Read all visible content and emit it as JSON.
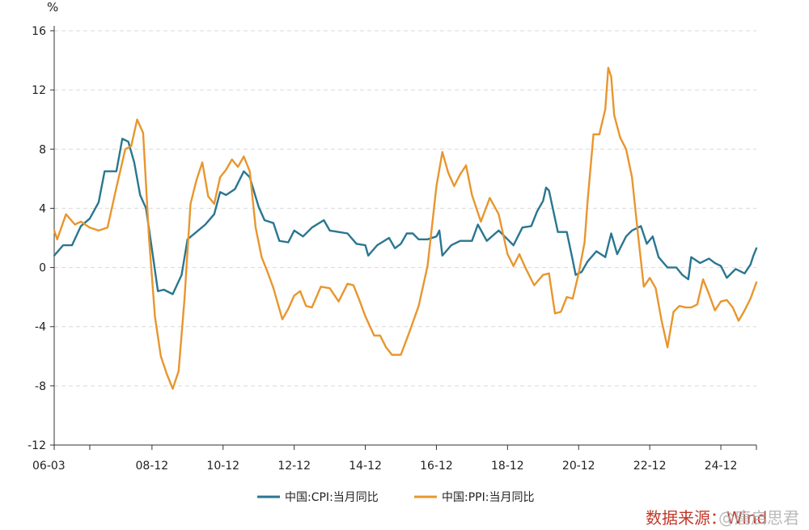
{
  "chart_data": {
    "type": "line",
    "title": "",
    "unit_label": "%",
    "ylim": [
      -12,
      16
    ],
    "yticks": [
      -12,
      -8,
      -4,
      0,
      4,
      8,
      12,
      16
    ],
    "y_tick_labels": [
      "-12",
      "-8",
      "-4",
      "0",
      "4",
      "8",
      "12",
      "16"
    ],
    "x_range": [
      "2006-03",
      "2025-12"
    ],
    "x_tick_labels": [
      "06-03",
      "08-12",
      "10-12",
      "12-12",
      "14-12",
      "16-12",
      "18-12",
      "20-12",
      "22-12",
      "24-12"
    ],
    "x_tick_dates": [
      "2006-03",
      "2008-12",
      "2010-12",
      "2012-12",
      "2014-12",
      "2016-12",
      "2018-12",
      "2020-12",
      "2022-12",
      "2024-12"
    ],
    "grid": true,
    "legend_position": "bottom",
    "series": [
      {
        "name": "中国:CPI:当月同比",
        "color": "#2a7690",
        "points": [
          [
            "2006-03",
            0.8
          ],
          [
            "2006-06",
            1.5
          ],
          [
            "2006-09",
            1.5
          ],
          [
            "2006-12",
            2.8
          ],
          [
            "2007-03",
            3.3
          ],
          [
            "2007-06",
            4.4
          ],
          [
            "2007-08",
            6.5
          ],
          [
            "2007-10",
            6.5
          ],
          [
            "2007-12",
            6.5
          ],
          [
            "2008-02",
            8.7
          ],
          [
            "2008-04",
            8.5
          ],
          [
            "2008-06",
            7.1
          ],
          [
            "2008-08",
            4.9
          ],
          [
            "2008-10",
            4.0
          ],
          [
            "2008-12",
            1.2
          ],
          [
            "2009-02",
            -1.6
          ],
          [
            "2009-04",
            -1.5
          ],
          [
            "2009-07",
            -1.8
          ],
          [
            "2009-10",
            -0.5
          ],
          [
            "2009-12",
            1.9
          ],
          [
            "2010-03",
            2.4
          ],
          [
            "2010-06",
            2.9
          ],
          [
            "2010-09",
            3.6
          ],
          [
            "2010-11",
            5.1
          ],
          [
            "2011-01",
            4.9
          ],
          [
            "2011-04",
            5.3
          ],
          [
            "2011-07",
            6.5
          ],
          [
            "2011-09",
            6.1
          ],
          [
            "2011-12",
            4.1
          ],
          [
            "2012-02",
            3.2
          ],
          [
            "2012-05",
            3.0
          ],
          [
            "2012-07",
            1.8
          ],
          [
            "2012-10",
            1.7
          ],
          [
            "2012-12",
            2.5
          ],
          [
            "2013-03",
            2.1
          ],
          [
            "2013-06",
            2.7
          ],
          [
            "2013-10",
            3.2
          ],
          [
            "2013-12",
            2.5
          ],
          [
            "2014-03",
            2.4
          ],
          [
            "2014-06",
            2.3
          ],
          [
            "2014-09",
            1.6
          ],
          [
            "2014-12",
            1.5
          ],
          [
            "2015-01",
            0.8
          ],
          [
            "2015-04",
            1.5
          ],
          [
            "2015-08",
            2.0
          ],
          [
            "2015-10",
            1.3
          ],
          [
            "2015-12",
            1.6
          ],
          [
            "2016-02",
            2.3
          ],
          [
            "2016-04",
            2.3
          ],
          [
            "2016-06",
            1.9
          ],
          [
            "2016-09",
            1.9
          ],
          [
            "2016-12",
            2.1
          ],
          [
            "2017-01",
            2.5
          ],
          [
            "2017-02",
            0.8
          ],
          [
            "2017-05",
            1.5
          ],
          [
            "2017-08",
            1.8
          ],
          [
            "2017-12",
            1.8
          ],
          [
            "2018-02",
            2.9
          ],
          [
            "2018-05",
            1.8
          ],
          [
            "2018-09",
            2.5
          ],
          [
            "2018-12",
            1.9
          ],
          [
            "2019-02",
            1.5
          ],
          [
            "2019-05",
            2.7
          ],
          [
            "2019-08",
            2.8
          ],
          [
            "2019-10",
            3.8
          ],
          [
            "2019-12",
            4.5
          ],
          [
            "2020-01",
            5.4
          ],
          [
            "2020-02",
            5.2
          ],
          [
            "2020-05",
            2.4
          ],
          [
            "2020-08",
            2.4
          ],
          [
            "2020-10",
            0.5
          ],
          [
            "2020-11",
            -0.5
          ],
          [
            "2021-01",
            -0.3
          ],
          [
            "2021-03",
            0.4
          ],
          [
            "2021-06",
            1.1
          ],
          [
            "2021-09",
            0.7
          ],
          [
            "2021-11",
            2.3
          ],
          [
            "2022-01",
            0.9
          ],
          [
            "2022-04",
            2.1
          ],
          [
            "2022-06",
            2.5
          ],
          [
            "2022-09",
            2.8
          ],
          [
            "2022-11",
            1.6
          ],
          [
            "2023-01",
            2.1
          ],
          [
            "2023-03",
            0.7
          ],
          [
            "2023-06",
            0.0
          ],
          [
            "2023-09",
            0.0
          ],
          [
            "2023-11",
            -0.5
          ],
          [
            "2024-01",
            -0.8
          ],
          [
            "2024-02",
            0.7
          ],
          [
            "2024-05",
            0.3
          ],
          [
            "2024-08",
            0.6
          ],
          [
            "2024-10",
            0.3
          ],
          [
            "2024-12",
            0.1
          ],
          [
            "2025-02",
            -0.7
          ],
          [
            "2025-05",
            -0.1
          ],
          [
            "2025-08",
            -0.4
          ],
          [
            "2025-10",
            0.2
          ],
          [
            "2025-11",
            0.8
          ],
          [
            "2025-12",
            1.3
          ]
        ]
      },
      {
        "name": "中国:PPI:当月同比",
        "color": "#e8962e",
        "points": [
          [
            "2006-03",
            2.5
          ],
          [
            "2006-04",
            1.9
          ],
          [
            "2006-07",
            3.6
          ],
          [
            "2006-10",
            2.9
          ],
          [
            "2006-12",
            3.1
          ],
          [
            "2007-03",
            2.7
          ],
          [
            "2007-06",
            2.5
          ],
          [
            "2007-09",
            2.7
          ],
          [
            "2007-12",
            5.4
          ],
          [
            "2008-03",
            8.0
          ],
          [
            "2008-05",
            8.2
          ],
          [
            "2008-07",
            10.0
          ],
          [
            "2008-09",
            9.1
          ],
          [
            "2008-11",
            2.0
          ],
          [
            "2009-01",
            -3.3
          ],
          [
            "2009-03",
            -6.0
          ],
          [
            "2009-05",
            -7.2
          ],
          [
            "2009-07",
            -8.2
          ],
          [
            "2009-09",
            -7.0
          ],
          [
            "2009-11",
            -2.1
          ],
          [
            "2010-01",
            4.3
          ],
          [
            "2010-03",
            5.9
          ],
          [
            "2010-05",
            7.1
          ],
          [
            "2010-07",
            4.8
          ],
          [
            "2010-09",
            4.3
          ],
          [
            "2010-11",
            6.1
          ],
          [
            "2011-01",
            6.6
          ],
          [
            "2011-03",
            7.3
          ],
          [
            "2011-05",
            6.8
          ],
          [
            "2011-07",
            7.5
          ],
          [
            "2011-09",
            6.5
          ],
          [
            "2011-11",
            2.7
          ],
          [
            "2012-01",
            0.7
          ],
          [
            "2012-03",
            -0.3
          ],
          [
            "2012-05",
            -1.4
          ],
          [
            "2012-08",
            -3.5
          ],
          [
            "2012-10",
            -2.8
          ],
          [
            "2012-12",
            -1.9
          ],
          [
            "2013-02",
            -1.6
          ],
          [
            "2013-04",
            -2.6
          ],
          [
            "2013-06",
            -2.7
          ],
          [
            "2013-09",
            -1.3
          ],
          [
            "2013-12",
            -1.4
          ],
          [
            "2014-03",
            -2.3
          ],
          [
            "2014-06",
            -1.1
          ],
          [
            "2014-08",
            -1.2
          ],
          [
            "2014-10",
            -2.2
          ],
          [
            "2014-12",
            -3.3
          ],
          [
            "2015-03",
            -4.6
          ],
          [
            "2015-05",
            -4.6
          ],
          [
            "2015-07",
            -5.4
          ],
          [
            "2015-09",
            -5.9
          ],
          [
            "2015-12",
            -5.9
          ],
          [
            "2016-03",
            -4.3
          ],
          [
            "2016-06",
            -2.6
          ],
          [
            "2016-09",
            0.1
          ],
          [
            "2016-12",
            5.5
          ],
          [
            "2017-02",
            7.8
          ],
          [
            "2017-04",
            6.4
          ],
          [
            "2017-06",
            5.5
          ],
          [
            "2017-08",
            6.3
          ],
          [
            "2017-10",
            6.9
          ],
          [
            "2017-12",
            4.9
          ],
          [
            "2018-03",
            3.1
          ],
          [
            "2018-06",
            4.7
          ],
          [
            "2018-09",
            3.6
          ],
          [
            "2018-12",
            0.9
          ],
          [
            "2019-02",
            0.1
          ],
          [
            "2019-04",
            0.9
          ],
          [
            "2019-06",
            0.0
          ],
          [
            "2019-09",
            -1.2
          ],
          [
            "2019-12",
            -0.5
          ],
          [
            "2020-02",
            -0.4
          ],
          [
            "2020-04",
            -3.1
          ],
          [
            "2020-06",
            -3.0
          ],
          [
            "2020-08",
            -2.0
          ],
          [
            "2020-10",
            -2.1
          ],
          [
            "2020-12",
            -0.4
          ],
          [
            "2021-02",
            1.7
          ],
          [
            "2021-03",
            4.4
          ],
          [
            "2021-05",
            9.0
          ],
          [
            "2021-07",
            9.0
          ],
          [
            "2021-09",
            10.7
          ],
          [
            "2021-10",
            13.5
          ],
          [
            "2021-11",
            12.9
          ],
          [
            "2021-12",
            10.3
          ],
          [
            "2022-02",
            8.8
          ],
          [
            "2022-04",
            8.0
          ],
          [
            "2022-06",
            6.1
          ],
          [
            "2022-08",
            2.3
          ],
          [
            "2022-10",
            -1.3
          ],
          [
            "2022-12",
            -0.7
          ],
          [
            "2023-02",
            -1.4
          ],
          [
            "2023-04",
            -3.6
          ],
          [
            "2023-06",
            -5.4
          ],
          [
            "2023-08",
            -3.0
          ],
          [
            "2023-10",
            -2.6
          ],
          [
            "2023-12",
            -2.7
          ],
          [
            "2024-02",
            -2.7
          ],
          [
            "2024-04",
            -2.5
          ],
          [
            "2024-06",
            -0.8
          ],
          [
            "2024-08",
            -1.8
          ],
          [
            "2024-10",
            -2.9
          ],
          [
            "2024-12",
            -2.3
          ],
          [
            "2025-02",
            -2.2
          ],
          [
            "2025-04",
            -2.7
          ],
          [
            "2025-06",
            -3.6
          ],
          [
            "2025-08",
            -2.9
          ],
          [
            "2025-10",
            -2.1
          ],
          [
            "2025-12",
            -1.0
          ]
        ]
      }
    ]
  },
  "source_note": "数据来源：Wind",
  "watermark": "@唐启思君"
}
